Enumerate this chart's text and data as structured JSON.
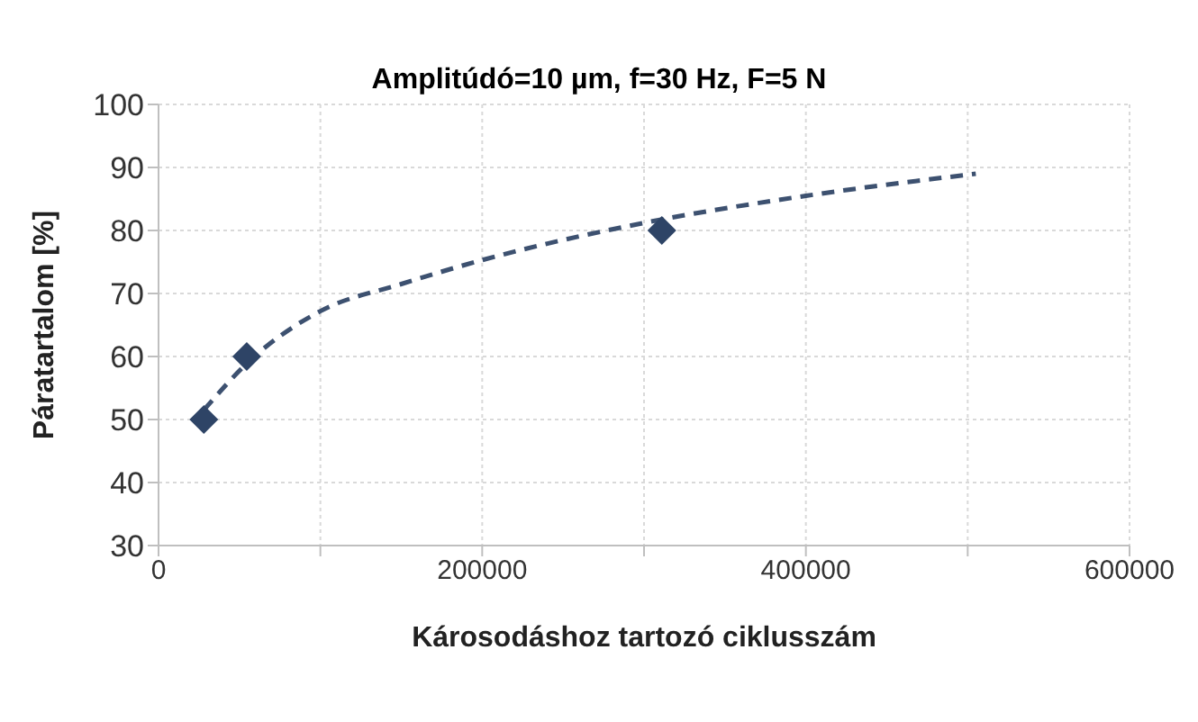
{
  "chart_data": {
    "type": "scatter",
    "title": "Amplitúdó=10 µm, f=30 Hz, F=5 N",
    "xlabel": "Károsodáshoz tartozó ciklusszám",
    "ylabel": "Páratartalom [%]",
    "series": [
      {
        "color": "#2e4466",
        "marker": "diamond",
        "x": [
          28000,
          54500,
          311000
        ],
        "values": [
          50,
          60,
          80
        ]
      },
      {
        "type": "line",
        "color": "#3d5170",
        "marker": "none",
        "line_style": "dashed",
        "x": [
          28000,
          55000,
          100000,
          150000,
          200000,
          300000,
          400000,
          505000
        ],
        "values": [
          51.5,
          59,
          67.2,
          71.5,
          75.3,
          81.2,
          85.5,
          89
        ]
      }
    ],
    "xlim": [
      0,
      600000
    ],
    "xticks": [
      0,
      {
        "value": 100000,
        "label": null
      },
      200000,
      {
        "value": 300000,
        "label": null
      },
      400000,
      {
        "value": 500000,
        "label": null
      },
      600000
    ],
    "ylim": [
      30,
      100
    ],
    "yticks": [
      30,
      40,
      50,
      60,
      70,
      80,
      90,
      100
    ],
    "grid": true,
    "legend": false
  }
}
